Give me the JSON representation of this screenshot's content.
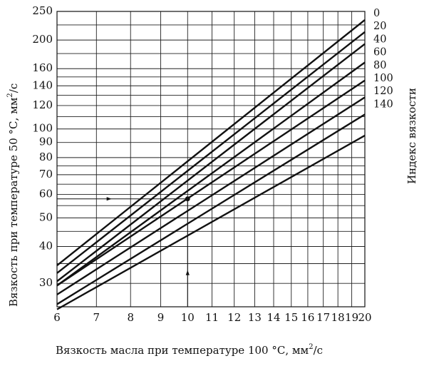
{
  "chart_data": {
    "type": "line",
    "xlabel": "Вязкость масла при температуре 100 °С, мм",
    "xlabel_sup": "2",
    "xlabel_unit": "/с",
    "ylabel": "Вязкость  при температуре 50 °С, мм",
    "ylabel_sup": "2",
    "ylabel_unit": "/с",
    "right_label": "Индекс вязкости",
    "x_scale": "log",
    "y_scale": "log",
    "xlim": [
      6,
      20
    ],
    "ylim": [
      25,
      250
    ],
    "x_ticks": [
      6,
      7,
      8,
      9,
      10,
      11,
      12,
      13,
      14,
      15,
      16,
      17,
      18,
      19,
      20
    ],
    "y_ticks": [
      30,
      40,
      50,
      60,
      70,
      80,
      90,
      100,
      120,
      140,
      160,
      200,
      250
    ],
    "y_gridlines": [
      30,
      35,
      40,
      45,
      50,
      55,
      60,
      65,
      70,
      75,
      80,
      90,
      100,
      110,
      120,
      130,
      140,
      150,
      160,
      180,
      200,
      225,
      250
    ],
    "grid": true,
    "series": [
      {
        "name": "0",
        "x": [
          6,
          20
        ],
        "y": [
          34.5,
          234
        ]
      },
      {
        "name": "20",
        "x": [
          6,
          20
        ],
        "y": [
          32.5,
          213
        ]
      },
      {
        "name": "40",
        "x": [
          6,
          20
        ],
        "y": [
          30.5,
          194
        ]
      },
      {
        "name": "60",
        "x": [
          6,
          20
        ],
        "y": [
          29.5,
          168
        ]
      },
      {
        "name": "80",
        "x": [
          6,
          20
        ],
        "y": [
          29.5,
          146
        ]
      },
      {
        "name": "100",
        "x": [
          6,
          20
        ],
        "y": [
          27.5,
          128
        ]
      },
      {
        "name": "120",
        "x": [
          6,
          20
        ],
        "y": [
          25.5,
          112
        ]
      },
      {
        "name": "140",
        "x": [
          6,
          20
        ],
        "y": [
          24.5,
          95
        ]
      }
    ],
    "example": {
      "x": 10,
      "y": 58
    }
  }
}
